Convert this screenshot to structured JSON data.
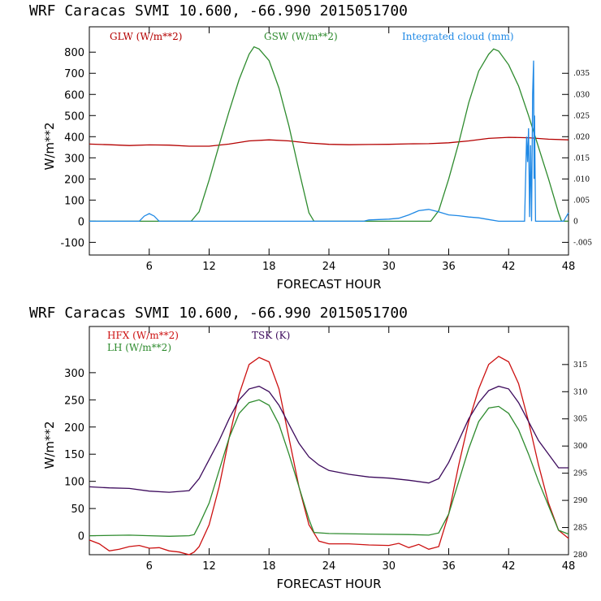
{
  "colors": {
    "glw": "#b40000",
    "gsw": "#2e8b2e",
    "cloud": "#1e88e5",
    "hfx": "#cc1111",
    "lh": "#2e8b2e",
    "tsk": "#3c0a5c",
    "axis": "#000000"
  },
  "chart_data": [
    {
      "type": "line",
      "title": "WRF  Caracas SVMI  10.600, -66.990  2015051700",
      "xlabel": "FORECAST HOUR",
      "ylabel": "W/m**2",
      "xlim": [
        0,
        48
      ],
      "ylim": [
        -160,
        920
      ],
      "x_ticks": [
        6,
        12,
        18,
        24,
        30,
        36,
        42,
        48
      ],
      "y_ticks": [
        -100,
        0,
        100,
        200,
        300,
        400,
        500,
        600,
        700,
        800
      ],
      "y2lim": [
        -0.008,
        0.046
      ],
      "y2_ticks": [
        -0.005,
        0,
        0.005,
        0.01,
        0.015,
        0.02,
        0.025,
        0.03,
        0.035
      ],
      "y2_tick_labels": [
        "-.005",
        "0",
        ".005",
        ".010",
        ".015",
        ".020",
        ".025",
        ".030",
        ".035"
      ],
      "series": [
        {
          "name": "GLW (W/m**2)",
          "axis": "left",
          "color_key": "glw",
          "points": [
            [
              0,
              365
            ],
            [
              2,
              362
            ],
            [
              4,
              358
            ],
            [
              6,
              361
            ],
            [
              8,
              360
            ],
            [
              10,
              355
            ],
            [
              12,
              355
            ],
            [
              14,
              365
            ],
            [
              16,
              380
            ],
            [
              18,
              385
            ],
            [
              20,
              380
            ],
            [
              22,
              370
            ],
            [
              24,
              364
            ],
            [
              26,
              362
            ],
            [
              28,
              363
            ],
            [
              30,
              364
            ],
            [
              32,
              366
            ],
            [
              34,
              367
            ],
            [
              36,
              371
            ],
            [
              38,
              380
            ],
            [
              40,
              392
            ],
            [
              42,
              397
            ],
            [
              44,
              395
            ],
            [
              46,
              388
            ],
            [
              48,
              385
            ]
          ]
        },
        {
          "name": "GSW (W/m**2)",
          "axis": "left",
          "color_key": "gsw",
          "points": [
            [
              0,
              0
            ],
            [
              10.2,
              0
            ],
            [
              11,
              45
            ],
            [
              12,
              195
            ],
            [
              13,
              360
            ],
            [
              14,
              520
            ],
            [
              15,
              670
            ],
            [
              16,
              790
            ],
            [
              16.5,
              825
            ],
            [
              17,
              815
            ],
            [
              18,
              760
            ],
            [
              19,
              630
            ],
            [
              20,
              450
            ],
            [
              21,
              240
            ],
            [
              22,
              40
            ],
            [
              22.5,
              0
            ],
            [
              34.2,
              0
            ],
            [
              35,
              50
            ],
            [
              36,
              200
            ],
            [
              37,
              370
            ],
            [
              38,
              560
            ],
            [
              39,
              710
            ],
            [
              40,
              790
            ],
            [
              40.5,
              815
            ],
            [
              41,
              805
            ],
            [
              42,
              740
            ],
            [
              43,
              640
            ],
            [
              44,
              500
            ],
            [
              45,
              350
            ],
            [
              46,
              200
            ],
            [
              47,
              40
            ],
            [
              47.3,
              0
            ],
            [
              48,
              0
            ]
          ]
        },
        {
          "name": "Integrated cloud (mm)",
          "axis": "right",
          "color_key": "cloud",
          "points": [
            [
              0,
              0
            ],
            [
              5,
              0
            ],
            [
              5.5,
              0.0012
            ],
            [
              6,
              0.0018
            ],
            [
              6.5,
              0.0012
            ],
            [
              7,
              0
            ],
            [
              27.5,
              0
            ],
            [
              28,
              0.0003
            ],
            [
              30,
              0.0005
            ],
            [
              31,
              0.0007
            ],
            [
              32,
              0.0015
            ],
            [
              33,
              0.0025
            ],
            [
              34,
              0.0028
            ],
            [
              35,
              0.0022
            ],
            [
              36,
              0.0015
            ],
            [
              37,
              0.0013
            ],
            [
              38,
              0.001
            ],
            [
              39,
              0.0008
            ],
            [
              40,
              0.0004
            ],
            [
              41,
              0
            ],
            [
              43.6,
              0
            ],
            [
              43.8,
              0.02
            ],
            [
              43.9,
              0.014
            ],
            [
              44,
              0.022
            ],
            [
              44.1,
              0.001
            ],
            [
              44.2,
              0.018
            ],
            [
              44.3,
              0.0
            ],
            [
              44.4,
              0.03
            ],
            [
              44.5,
              0.038
            ],
            [
              44.55,
              0.01
            ],
            [
              44.6,
              0.025
            ],
            [
              44.7,
              0
            ],
            [
              47.5,
              0
            ],
            [
              48,
              0.002
            ]
          ]
        }
      ]
    },
    {
      "type": "line",
      "title": "WRF  Caracas SVMI  10.600, -66.990  2015051700",
      "xlabel": "FORECAST HOUR",
      "ylabel": "W/m**2",
      "xlim": [
        0,
        48
      ],
      "ylim": [
        -35,
        385
      ],
      "x_ticks": [
        6,
        12,
        18,
        24,
        30,
        36,
        42,
        48
      ],
      "y_ticks": [
        0,
        50,
        100,
        150,
        200,
        250,
        300
      ],
      "y2lim": [
        280,
        322
      ],
      "y2_ticks": [
        280,
        285,
        290,
        295,
        300,
        305,
        310,
        315
      ],
      "y2_tick_labels": [
        "280",
        "285",
        "290",
        "295",
        "300",
        "305",
        "310",
        "315"
      ],
      "series": [
        {
          "name": "HFX (W/m**2)",
          "axis": "left",
          "color_key": "hfx",
          "points": [
            [
              0,
              -8
            ],
            [
              1,
              -15
            ],
            [
              2,
              -28
            ],
            [
              3,
              -25
            ],
            [
              4,
              -20
            ],
            [
              5,
              -18
            ],
            [
              6,
              -23
            ],
            [
              7,
              -22
            ],
            [
              8,
              -28
            ],
            [
              9,
              -30
            ],
            [
              10,
              -35
            ],
            [
              10.5,
              -30
            ],
            [
              11,
              -20
            ],
            [
              12,
              20
            ],
            [
              13,
              90
            ],
            [
              14,
              180
            ],
            [
              15,
              260
            ],
            [
              16,
              315
            ],
            [
              17,
              328
            ],
            [
              18,
              320
            ],
            [
              19,
              270
            ],
            [
              20,
              180
            ],
            [
              21,
              90
            ],
            [
              22,
              20
            ],
            [
              23,
              -10
            ],
            [
              24,
              -15
            ],
            [
              26,
              -15
            ],
            [
              28,
              -17
            ],
            [
              30,
              -18
            ],
            [
              31,
              -14
            ],
            [
              32,
              -22
            ],
            [
              33,
              -16
            ],
            [
              34,
              -25
            ],
            [
              35,
              -20
            ],
            [
              36,
              40
            ],
            [
              37,
              130
            ],
            [
              38,
              210
            ],
            [
              39,
              270
            ],
            [
              40,
              315
            ],
            [
              41,
              330
            ],
            [
              42,
              320
            ],
            [
              43,
              280
            ],
            [
              44,
              210
            ],
            [
              45,
              130
            ],
            [
              46,
              60
            ],
            [
              47,
              10
            ],
            [
              48,
              -5
            ]
          ]
        },
        {
          "name": "LH (W/m**2)",
          "axis": "left",
          "color_key": "lh",
          "points": [
            [
              0,
              0
            ],
            [
              4,
              1
            ],
            [
              6,
              0
            ],
            [
              8,
              -1
            ],
            [
              10,
              0
            ],
            [
              10.5,
              2
            ],
            [
              11,
              20
            ],
            [
              12,
              60
            ],
            [
              13,
              120
            ],
            [
              14,
              180
            ],
            [
              15,
              225
            ],
            [
              16,
              245
            ],
            [
              17,
              250
            ],
            [
              18,
              240
            ],
            [
              19,
              205
            ],
            [
              20,
              150
            ],
            [
              21,
              90
            ],
            [
              22,
              30
            ],
            [
              22.5,
              6
            ],
            [
              24,
              4
            ],
            [
              28,
              3
            ],
            [
              32,
              2
            ],
            [
              34,
              1
            ],
            [
              35,
              5
            ],
            [
              36,
              40
            ],
            [
              37,
              100
            ],
            [
              38,
              160
            ],
            [
              39,
              210
            ],
            [
              40,
              235
            ],
            [
              41,
              238
            ],
            [
              42,
              225
            ],
            [
              43,
              195
            ],
            [
              44,
              150
            ],
            [
              45,
              100
            ],
            [
              46,
              55
            ],
            [
              47,
              10
            ],
            [
              48,
              3
            ]
          ]
        },
        {
          "name": "TSK (K)",
          "axis": "right",
          "color_key": "tsk",
          "points": [
            [
              0,
              292.5
            ],
            [
              2,
              292.3
            ],
            [
              4,
              292.2
            ],
            [
              6,
              291.7
            ],
            [
              8,
              291.5
            ],
            [
              10,
              291.8
            ],
            [
              11,
              294
            ],
            [
              12,
              297.5
            ],
            [
              13,
              301
            ],
            [
              14,
              305
            ],
            [
              15,
              308.5
            ],
            [
              16,
              310.5
            ],
            [
              17,
              311
            ],
            [
              18,
              310
            ],
            [
              19,
              307.5
            ],
            [
              20,
              304
            ],
            [
              21,
              300.5
            ],
            [
              22,
              298
            ],
            [
              23,
              296.5
            ],
            [
              24,
              295.5
            ],
            [
              26,
              294.8
            ],
            [
              28,
              294.3
            ],
            [
              30,
              294.1
            ],
            [
              32,
              293.7
            ],
            [
              34,
              293.2
            ],
            [
              35,
              294
            ],
            [
              36,
              297
            ],
            [
              37,
              301
            ],
            [
              38,
              305
            ],
            [
              39,
              308
            ],
            [
              40,
              310.2
            ],
            [
              41,
              311
            ],
            [
              42,
              310.5
            ],
            [
              43,
              308
            ],
            [
              44,
              304.5
            ],
            [
              45,
              301
            ],
            [
              46,
              298.5
            ],
            [
              47,
              296
            ],
            [
              48,
              296
            ]
          ]
        }
      ]
    }
  ]
}
